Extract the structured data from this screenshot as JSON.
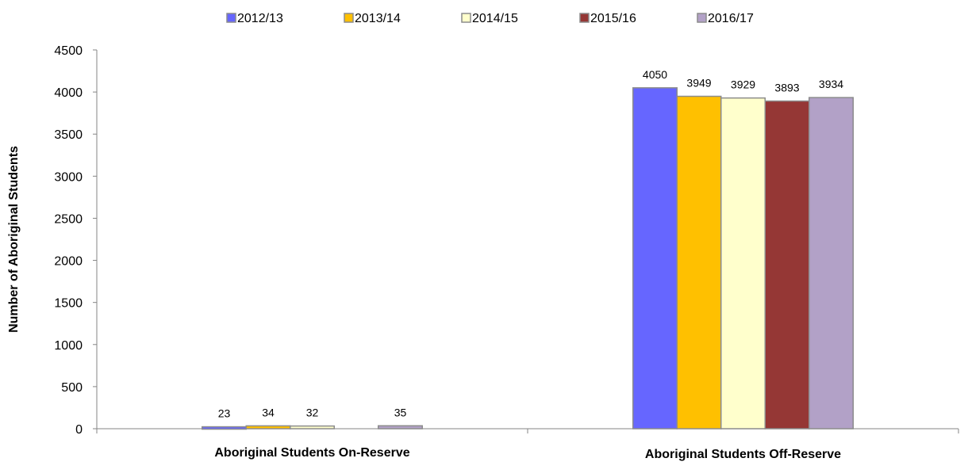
{
  "chart_data": {
    "type": "bar",
    "categories": [
      "Aboriginal Students On-Reserve",
      "Aboriginal Students Off-Reserve"
    ],
    "series": [
      {
        "name": "2012/13",
        "color": "#6666ff",
        "values": [
          23,
          4050
        ]
      },
      {
        "name": "2013/14",
        "color": "#ffc000",
        "values": [
          34,
          3949
        ]
      },
      {
        "name": "2014/15",
        "color": "#ffffcc",
        "values": [
          32,
          3929
        ]
      },
      {
        "name": "2015/16",
        "color": "#953735",
        "values": [
          null,
          3893
        ]
      },
      {
        "name": "2016/17",
        "color": "#b2a1c7",
        "values": [
          35,
          3934
        ]
      }
    ],
    "ylabel": "Number of Aboriginal Students",
    "yticks": [
      "0",
      "500",
      "1000",
      "1500",
      "2000",
      "2500",
      "3000",
      "3500",
      "4000",
      "4500"
    ],
    "ylim": [
      0,
      4500
    ],
    "legend_position": "top",
    "grid": false
  }
}
